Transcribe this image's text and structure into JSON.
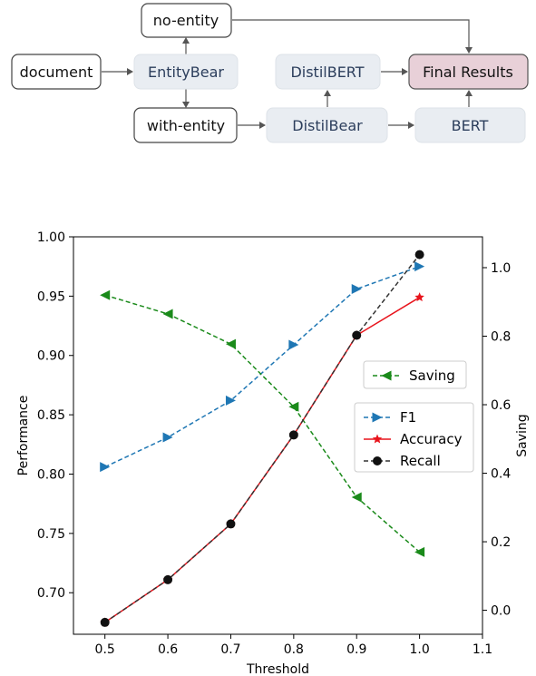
{
  "diagram": {
    "nodes": {
      "document": "document",
      "entitybear": "EntityBear",
      "no_entity": "no-entity",
      "with_entity": "with-entity",
      "distilbear": "DistilBear",
      "distilbert": "DistilBERT",
      "bert": "BERT",
      "final_results": "Final Results"
    },
    "colors": {
      "model_fill": "#e9edf2",
      "model_text": "#2c3e5c",
      "final_fill": "#e8d0d8",
      "plain_fill": "#ffffff",
      "arrow": "#555555"
    }
  },
  "chart_data": {
    "type": "line",
    "x": [
      0.5,
      0.6,
      0.7,
      0.8,
      0.9,
      1.0
    ],
    "xlabel": "Threshold",
    "ylabel": "Performance",
    "y2label": "Saving",
    "xlim": [
      0.45,
      1.1
    ],
    "ylim": [
      0.665,
      1.0
    ],
    "y2lim": [
      -0.07,
      1.09
    ],
    "xticks": [
      "0.5",
      "0.6",
      "0.7",
      "0.8",
      "0.9",
      "1.0",
      "1.1"
    ],
    "yticks": [
      "0.70",
      "0.75",
      "0.80",
      "0.85",
      "0.90",
      "0.95",
      "1.00"
    ],
    "y2ticks": [
      "0.0",
      "0.2",
      "0.4",
      "0.6",
      "0.8",
      "1.0"
    ],
    "grid": false,
    "series": [
      {
        "name": "F1",
        "axis": "left",
        "color": "#1f77b4",
        "linestyle": "dashed",
        "marker": "triangle-right",
        "values": [
          0.806,
          0.831,
          0.862,
          0.909,
          0.956,
          0.975
        ]
      },
      {
        "name": "Accuracy",
        "axis": "left",
        "color": "#e8141c",
        "linestyle": "solid",
        "marker": "star",
        "values": [
          0.675,
          0.711,
          0.758,
          0.833,
          0.917,
          0.949
        ]
      },
      {
        "name": "Recall",
        "axis": "left",
        "color": "#333333",
        "linestyle": "dashed",
        "marker": "circle",
        "values": [
          0.675,
          0.711,
          0.758,
          0.833,
          0.917,
          0.985
        ]
      },
      {
        "name": "Saving",
        "axis": "right",
        "color": "#1a8a1a",
        "linestyle": "dashed",
        "marker": "triangle-left",
        "values": [
          0.92,
          0.865,
          0.777,
          0.594,
          0.33,
          0.17
        ]
      }
    ],
    "legend_right_axis": [
      "Saving"
    ],
    "legend_left_axis": [
      "F1",
      "Accuracy",
      "Recall"
    ],
    "legend_placement": "center-right"
  }
}
